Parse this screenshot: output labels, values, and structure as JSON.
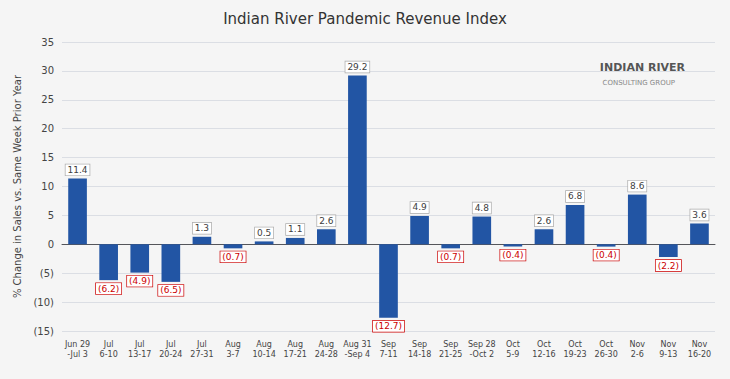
{
  "chart_data": {
    "type": "bar",
    "title": "Indian River Pandemic Revenue Index",
    "ylabel": "% Change in Sales vs. Same Week Prior Year",
    "categories": [
      "Jun 29\n-Jul 3",
      "Jul\n6-10",
      "Jul\n13-17",
      "Jul\n20-24",
      "Jul\n27-31",
      "Aug\n3-7",
      "Aug\n10-14",
      "Aug\n17-21",
      "Aug\n24-28",
      "Aug 31\n-Sep 4",
      "Sep\n7-11",
      "Sep\n14-18",
      "Sep\n21-25",
      "Sep 28\n-Oct 2",
      "Oct\n5-9",
      "Oct\n12-16",
      "Oct\n19-23",
      "Oct\n26-30",
      "Nov\n2-6",
      "Nov\n9-13",
      "Nov\n16-20"
    ],
    "values": [
      11.4,
      -6.2,
      -4.9,
      -6.5,
      1.3,
      -0.7,
      0.5,
      1.1,
      2.6,
      29.2,
      -12.7,
      4.9,
      -0.7,
      4.8,
      -0.4,
      2.6,
      6.8,
      -0.4,
      8.6,
      -2.2,
      3.6
    ],
    "value_labels": [
      "11.4",
      "(6.2)",
      "(4.9)",
      "(6.5)",
      "1.3",
      "(0.7)",
      "0.5",
      "1.1",
      "2.6",
      "29.2",
      "(12.7)",
      "4.9",
      "(0.7)",
      "4.8",
      "(0.4)",
      "2.6",
      "6.8",
      "(0.4)",
      "8.6",
      "(2.2)",
      "3.6"
    ],
    "data_labels": true,
    "color": "#2255a4",
    "ylim": [
      -15,
      35
    ],
    "yticks": [
      {
        "value": -15,
        "label": "(15)"
      },
      {
        "value": -10,
        "label": "(10)"
      },
      {
        "value": -5,
        "label": "(5)"
      },
      0,
      5,
      10,
      15,
      20,
      25,
      30,
      35
    ],
    "grid": true,
    "annotations": [
      "INDIAN RIVER",
      "CONSULTING GROUP"
    ]
  }
}
